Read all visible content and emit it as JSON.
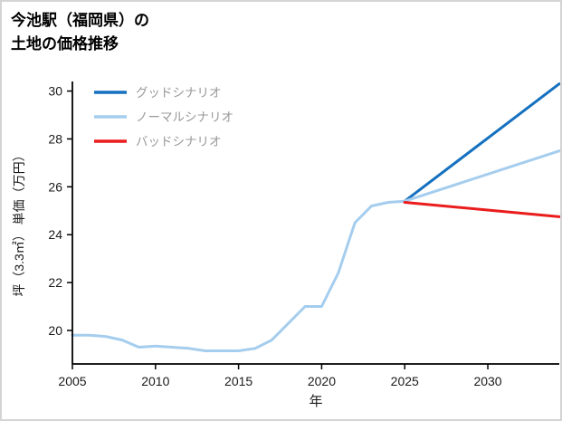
{
  "header": {
    "title_line1": "今池駅（福岡県）の",
    "title_line2": "土地の価格推移"
  },
  "chart_data": {
    "type": "line",
    "title": "今池駅（福岡県）の土地の価格推移",
    "xlabel": "年",
    "ylabel": "坪（3.3㎡） 単価（万円）",
    "xlim": [
      2005,
      2034.3
    ],
    "ylim": [
      18.6,
      30.4
    ],
    "xticks": [
      2005,
      2010,
      2015,
      2020,
      2025,
      2030
    ],
    "yticks": [
      20,
      22,
      24,
      26,
      28,
      30
    ],
    "grid": false,
    "legend_position": "upper-left",
    "axis_color": "#000000",
    "tick_label_color": "#1a1a1a",
    "legend_text_color": "#999999",
    "history": {
      "color": "#a5cdee",
      "x": [
        2005,
        2006,
        2007,
        2008,
        2009,
        2010,
        2011,
        2012,
        2013,
        2014,
        2015,
        2016,
        2017,
        2018,
        2019,
        2020,
        2021,
        2022,
        2023,
        2024,
        2025
      ],
      "y": [
        19.8,
        19.8,
        19.75,
        19.6,
        19.3,
        19.35,
        19.3,
        19.25,
        19.15,
        19.15,
        19.15,
        19.25,
        19.6,
        20.3,
        21.0,
        21.0,
        22.4,
        24.5,
        25.2,
        25.35,
        25.4
      ]
    },
    "series": [
      {
        "name": "グッドシナリオ",
        "color": "#1571bf",
        "x": [
          2025,
          2034.3
        ],
        "y": [
          25.4,
          30.3
        ]
      },
      {
        "name": "ノーマルシナリオ",
        "color": "#a5cdee",
        "x": [
          2025,
          2034.3
        ],
        "y": [
          25.4,
          27.5
        ]
      },
      {
        "name": "バッドシナリオ",
        "color": "#ea1c1c",
        "x": [
          2025,
          2034.3
        ],
        "y": [
          25.35,
          24.75
        ]
      }
    ]
  }
}
